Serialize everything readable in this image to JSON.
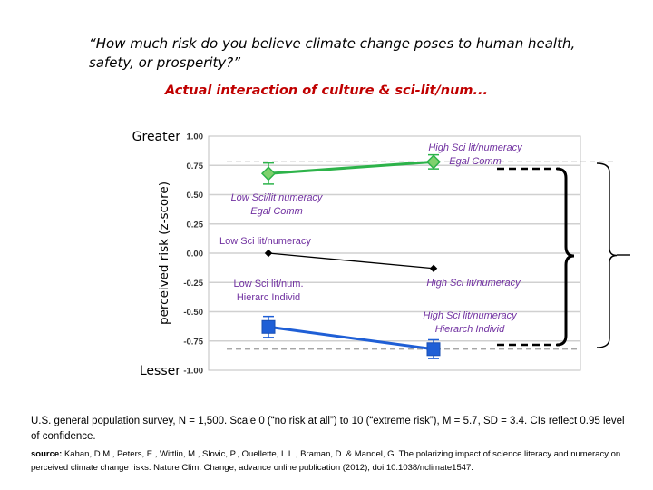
{
  "question": "“How much risk do you believe climate change poses to human health, safety, or prosperity?”",
  "subtitle": "Actual interaction of culture & sci-lit/num...",
  "colors": {
    "egal": "#2db34a",
    "hier": "#1f5fd6",
    "mean": "#000000",
    "label": "#7030a0",
    "subtitle": "#c00000"
  },
  "chart_data": {
    "type": "line",
    "ylabel": "perceived risk (z-score)",
    "ylim": [
      -1.0,
      1.0
    ],
    "yticks": [
      "1.00",
      "0.75",
      "0.50",
      "0.25",
      "0.00",
      "-0.25",
      "-0.50",
      "-0.75",
      "-1.00"
    ],
    "ytick_values": [
      1.0,
      0.75,
      0.5,
      0.25,
      0.0,
      -0.25,
      -0.5,
      -0.75,
      -1.0
    ],
    "top_label": "Greater",
    "bottom_label": "Lesser",
    "grid": true,
    "categories": [
      "Low Sci lit/numeracy",
      "High Sci lit/numeracy"
    ],
    "series": [
      {
        "key": "egal",
        "marker": "diamond",
        "values": [
          0.68,
          0.78
        ],
        "error": [
          0.09,
          0.06
        ]
      },
      {
        "key": "mean",
        "marker": "diamond-small",
        "values": [
          0.0,
          -0.13
        ],
        "error": [
          0,
          0
        ]
      },
      {
        "key": "hier",
        "marker": "square",
        "values": [
          -0.63,
          -0.82
        ],
        "error": [
          0.09,
          0.08
        ]
      }
    ],
    "annotations": [
      {
        "lines": [
          "High Sci lit/numeracy",
          "Egal Comm"
        ]
      },
      {
        "lines": [
          "Low  Sci/lit numeracy",
          "Egal Comm"
        ]
      },
      {
        "lines": [
          "Low Sci lit/numeracy"
        ]
      },
      {
        "lines": [
          "Low Sci lit/num.",
          "Hierarc Individ"
        ]
      },
      {
        "lines": [
          "High Sci lit/numeracy"
        ]
      },
      {
        "lines": [
          "High Sci lit/numeracy",
          "Hierarch Individ"
        ]
      }
    ]
  },
  "footer": {
    "survey": "U.S. general population survey, N = 1,500.  Scale 0 (“no risk at all”) to 10 (“extreme risk”), M = 5.7, SD = 3.4. CIs reflect 0.95 level of confidence.",
    "source_label": "source:",
    "source_text": "Kahan, D.M., Peters, E., Wittlin, M., Slovic, P., Ouellette, L.L., Braman, D. & Mandel, G. The polarizing impact of science literacy and numeracy on perceived climate change risks. Nature Clim. Change, advance online publication (2012), doi:10.1038/nclimate1547."
  }
}
